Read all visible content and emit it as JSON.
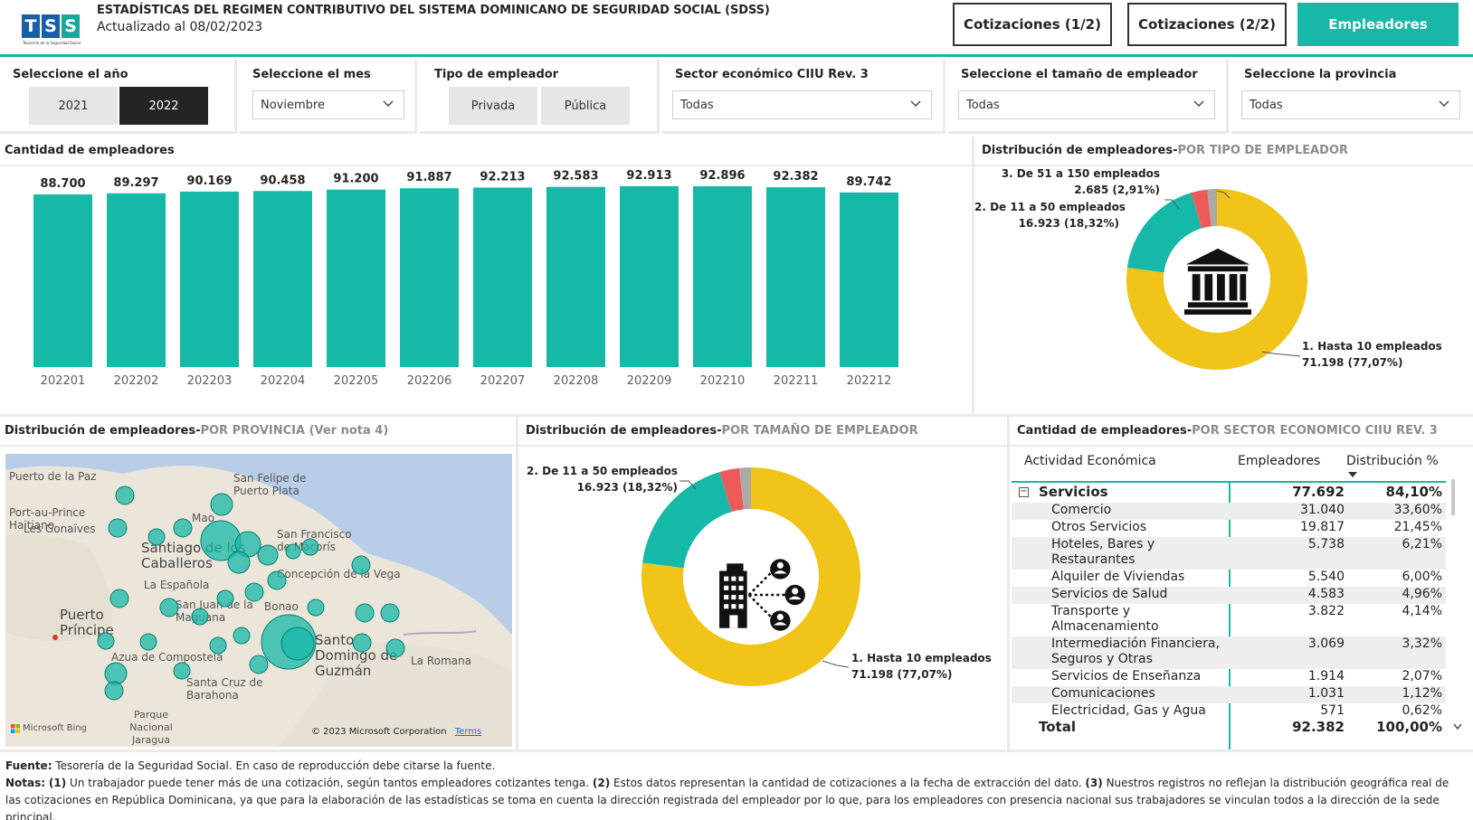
{
  "header": {
    "logo_text": "TSS",
    "logo_sub": "Tesorería de la Seguridad Social",
    "title": "ESTADÍSTICAS DEL REGIMEN CONTRIBUTIVO DEL SISTEMA DOMINICANO DE SEGURIDAD SOCIAL (SDSS)",
    "updated": "Actualizado al 08/02/2023",
    "nav": [
      "Cotizaciones (1/2)",
      "Cotizaciones (2/2)",
      "Empleadores"
    ]
  },
  "filters": {
    "year": {
      "label": "Seleccione el año",
      "options": [
        "2021",
        "2022"
      ],
      "selected": "2022"
    },
    "month": {
      "label": "Seleccione el mes",
      "value": "Noviembre"
    },
    "type": {
      "label": "Tipo de empleador",
      "options": [
        "Privada",
        "Pública"
      ]
    },
    "sector": {
      "label": "Sector económico CIIU Rev. 3",
      "value": "Todas"
    },
    "size": {
      "label": "Seleccione el tamaño de empleador",
      "value": "Todas"
    },
    "province": {
      "label": "Seleccione la provincia",
      "value": "Todas"
    }
  },
  "panels": {
    "bar_title": "Cantidad de empleadores",
    "type_title": "Distribución de empleadores-",
    "type_sub": "POR TIPO DE EMPLEADOR",
    "prov_title": "Distribución de empleadores-",
    "prov_sub": "POR PROVINCIA (Ver nota 4)",
    "size_title": "Distribución de empleadores-",
    "size_sub": "POR TAMAÑO DE EMPLEADOR",
    "sector_title": "Cantidad de empleadores-",
    "sector_sub": "POR SECTOR ECONOMICO CIIU REV. 3"
  },
  "chart_data": [
    {
      "type": "bar",
      "title": "Cantidad de empleadores",
      "categories": [
        "202201",
        "202202",
        "202203",
        "202204",
        "202205",
        "202206",
        "202207",
        "202208",
        "202209",
        "202210",
        "202211",
        "202212"
      ],
      "values": [
        88700,
        89297,
        90169,
        90458,
        91200,
        91887,
        92213,
        92583,
        92913,
        92896,
        92382,
        89742
      ],
      "value_labels": [
        "88.700",
        "89.297",
        "90.169",
        "90.458",
        "91.200",
        "91.887",
        "92.213",
        "92.583",
        "92.913",
        "92.896",
        "92.382",
        "89.742"
      ],
      "color": "#16b8a8"
    },
    {
      "type": "pie",
      "title": "Distribución de empleadores-POR TIPO DE EMPLEADOR",
      "slices": [
        {
          "name": "1. Hasta 10 empleados",
          "value": 71198,
          "label": "71.198 (77,07%)",
          "color": "#f0c419"
        },
        {
          "name": "2. De 11 a 50 empleados",
          "value": 16923,
          "label": "16.923 (18,32%)",
          "color": "#16b8a8"
        },
        {
          "name": "3. De 51 a 150 empleados",
          "value": 2685,
          "label": "2.685 (2,91%)",
          "color": "#ee5a5a"
        },
        {
          "name": "4",
          "value": 1576,
          "label": "",
          "color": "#aaaaaa"
        }
      ]
    },
    {
      "type": "pie",
      "title": "Distribución de empleadores-POR TAMAÑO DE EMPLEADOR",
      "slices": [
        {
          "name": "1. Hasta 10 empleados",
          "value": 71198,
          "label": "71.198 (77,07%)",
          "color": "#f0c419"
        },
        {
          "name": "2. De 11 a 50 empleados",
          "value": 16923,
          "label": "16.923 (18,32%)",
          "color": "#16b8a8"
        },
        {
          "name": "3",
          "value": 2685,
          "label": "",
          "color": "#ee5a5a"
        },
        {
          "name": "4",
          "value": 1576,
          "label": "",
          "color": "#aaaaaa"
        }
      ]
    },
    {
      "type": "table",
      "title": "Cantidad de empleadores-POR SECTOR ECONOMICO CIIU REV. 3",
      "columns": [
        "Actividad Económica",
        "Empleadores",
        "Distribución %"
      ],
      "group": {
        "name": "Servicios",
        "employers": "77.692",
        "pct": "84,10%"
      },
      "rows": [
        {
          "name": "Comercio",
          "employers": "31.040",
          "pct": "33,60%"
        },
        {
          "name": "Otros Servicios",
          "employers": "19.817",
          "pct": "21,45%"
        },
        {
          "name": "Hoteles, Bares y Restaurantes",
          "employers": "5.738",
          "pct": "6,21%"
        },
        {
          "name": "Alquiler de Viviendas",
          "employers": "5.540",
          "pct": "6,00%"
        },
        {
          "name": "Servicios de Salud",
          "employers": "4.583",
          "pct": "4,96%"
        },
        {
          "name": "Transporte y Almacenamiento",
          "employers": "3.822",
          "pct": "4,14%"
        },
        {
          "name": "Intermediación Financiera, Seguros y Otras",
          "employers": "3.069",
          "pct": "3,32%"
        },
        {
          "name": "Servicios de Enseñanza",
          "employers": "1.914",
          "pct": "2,07%"
        },
        {
          "name": "Comunicaciones",
          "employers": "1.031",
          "pct": "1,12%"
        },
        {
          "name": "Electricidad, Gas y Agua",
          "employers": "571",
          "pct": "0,62%"
        }
      ],
      "total": {
        "name": "Total",
        "employers": "92.382",
        "pct": "100,00%"
      }
    }
  ],
  "map": {
    "labels": [
      "Puerto de la Paz",
      "San Felipe de Puerto Plata",
      "Mao",
      "Port-au-Prince Haitiano",
      "Les Gonaïves",
      "Santiago de los Caballeros",
      "San Francisco de Macorís",
      "La Española",
      "Concepción de la Vega",
      "San Juan de la Maguana",
      "Bonao",
      "Puerto Príncipe",
      "Santo Domingo de Guzmán",
      "Azua de Compostela",
      "La Romana",
      "Santa Cruz de Barahona",
      "Parque Nacional Jaragua"
    ],
    "attribution": "Microsoft Bing",
    "copyright": "© 2023 Microsoft Corporation",
    "terms": "Terms"
  },
  "footer": {
    "source_label": "Fuente:",
    "source": "Tesorería de la Seguridad Social. En caso de reproducción debe citarse la fuente.",
    "notes_label": "Notas:",
    "n1_label": "(1)",
    "n1": "Un trabajador puede tener más de una cotización, según tantos empleadores cotizantes tenga.",
    "n2_label": "(2)",
    "n2": "Estos datos representan la cantidad de cotizaciones a la fecha de extracción del dato.",
    "n3_label": "(3)",
    "n3": "Nuestros registros no reflejan la distribución geográfica real de las cotizaciones en República Dominicana, ya que para la elaboración de las estadísticas se toma en cuenta la dirección registrada del empleador por lo que, para los empleadores con presencia nacional sus trabajadores se vinculan todos a la dirección de la sede principal."
  }
}
